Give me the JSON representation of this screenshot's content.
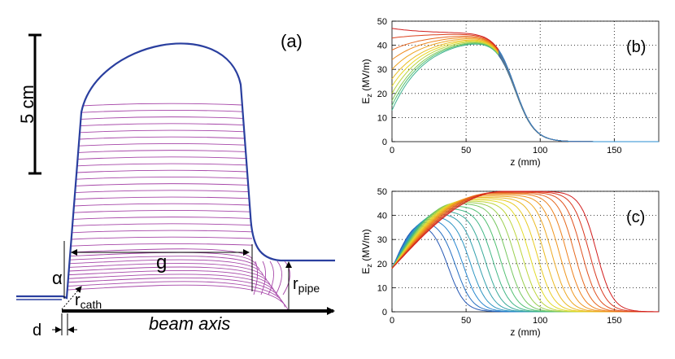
{
  "schematic": {
    "panel_label": "(a)",
    "scale_bar_label": "5 cm",
    "gap_label": "g",
    "alpha_label": "α",
    "r_cath_label": "r",
    "r_cath_sub": "cath",
    "r_pipe_label": "r",
    "r_pipe_sub": "pipe",
    "d_label": "d",
    "beam_axis_label": "beam axis"
  },
  "chart_data": [
    {
      "type": "line",
      "panel_label": "(b)",
      "xlabel": "z (mm)",
      "ylabel_main": "E",
      "ylabel_sub": "z",
      "ylabel_unit": "(MV/m)",
      "xlim": [
        0,
        180
      ],
      "ylim": [
        0,
        50
      ],
      "xticks": [
        0,
        50,
        100,
        150
      ],
      "yticks": [
        0,
        10,
        20,
        30,
        40,
        50
      ],
      "grid": "dotted",
      "curve_family": "fixed tail near 75 mm, cathode field from 13 to 47",
      "series_start_values": [
        13,
        15,
        17,
        20,
        23,
        26,
        30,
        34,
        38,
        43,
        47
      ],
      "peak_value": 44
    },
    {
      "type": "line",
      "panel_label": "(c)",
      "xlabel": "z (mm)",
      "ylabel_main": "E",
      "ylabel_sub": "z",
      "ylabel_unit": "(MV/m)",
      "xlim": [
        0,
        180
      ],
      "ylim": [
        0,
        50
      ],
      "xticks": [
        0,
        50,
        100,
        150
      ],
      "yticks": [
        0,
        10,
        20,
        30,
        40,
        50
      ],
      "grid": "dotted",
      "curve_family": "start 18 at z=0, falling edge shifts with gap",
      "series_falloff_z": [
        38,
        43,
        48,
        53,
        58,
        63,
        68,
        73,
        78,
        83,
        88,
        93,
        98,
        103,
        108,
        113,
        118,
        123,
        128,
        133,
        138
      ],
      "series_peak_values": [
        37,
        38,
        39,
        40,
        41,
        42,
        43,
        44,
        45,
        45.5,
        46,
        46.5,
        47,
        47.5,
        48,
        48.5,
        49,
        49.3,
        49.6,
        49.8,
        50
      ]
    }
  ]
}
